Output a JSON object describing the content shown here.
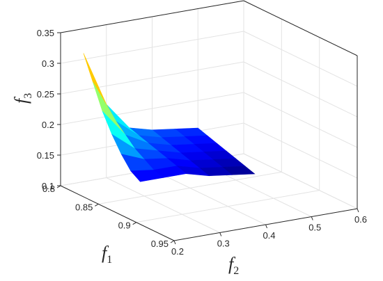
{
  "chart_data": {
    "type": "surface",
    "title": "",
    "axes": {
      "x": {
        "label": "f",
        "subscript": "1",
        "ticks": [
          "0.8",
          "0.85",
          "0.9",
          "0.95"
        ],
        "range": [
          0.8,
          0.95
        ]
      },
      "y": {
        "label": "f",
        "subscript": "2",
        "ticks": [
          "0.2",
          "0.3",
          "0.4",
          "0.5",
          "0.6"
        ],
        "range": [
          0.2,
          0.6
        ]
      },
      "z": {
        "label": "f",
        "subscript": "3",
        "ticks": [
          "0.1",
          "0.15",
          "0.2",
          "0.25",
          "0.3",
          "0.35"
        ],
        "range": [
          0.1,
          0.35
        ]
      }
    },
    "grid": true,
    "colormap": "jet",
    "surface": {
      "f1": [
        0.8,
        0.8125,
        0.825,
        0.8375,
        0.85,
        0.8625,
        0.875
      ],
      "f2": [
        0.25,
        0.3,
        0.35,
        0.4,
        0.45,
        0.5
      ],
      "f3": [
        [
          0.31,
          0.22,
          0.175,
          0.165,
          0.16,
          0.155
        ],
        [
          0.27,
          0.2,
          0.17,
          0.16,
          0.155,
          0.15
        ],
        [
          0.23,
          0.185,
          0.165,
          0.155,
          0.15,
          0.145
        ],
        [
          0.2,
          0.17,
          0.16,
          0.15,
          0.145,
          0.14
        ],
        [
          0.175,
          0.16,
          0.155,
          0.145,
          0.14,
          0.135
        ],
        [
          0.155,
          0.15,
          0.15,
          0.14,
          0.135,
          0.13
        ],
        [
          0.145,
          0.145,
          0.145,
          0.135,
          0.13,
          0.125
        ]
      ]
    }
  }
}
